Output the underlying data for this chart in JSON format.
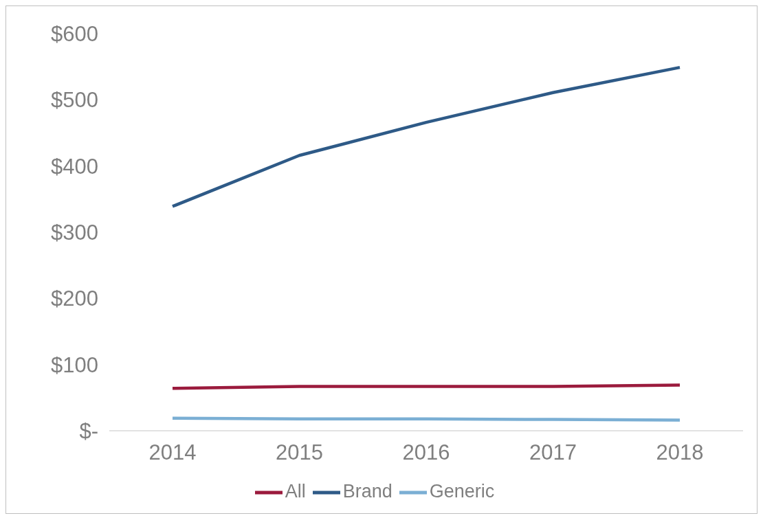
{
  "chart_data": {
    "type": "line",
    "categories": [
      "2014",
      "2015",
      "2016",
      "2017",
      "2018"
    ],
    "series": [
      {
        "name": "All",
        "color": "#9b1b3d",
        "values": [
          64,
          67,
          67,
          67,
          69
        ]
      },
      {
        "name": "Brand",
        "color": "#2e5a87",
        "values": [
          339,
          416,
          466,
          511,
          549
        ]
      },
      {
        "name": "Generic",
        "color": "#7bafd4",
        "values": [
          19,
          18,
          18,
          17,
          16
        ]
      }
    ],
    "ylim": [
      0,
      600
    ],
    "yticks": [
      {
        "value": 0,
        "label": "$-"
      },
      {
        "value": 100,
        "label": "$100"
      },
      {
        "value": 200,
        "label": "$200"
      },
      {
        "value": 300,
        "label": "$300"
      },
      {
        "value": 400,
        "label": "$400"
      },
      {
        "value": 500,
        "label": "$500"
      },
      {
        "value": 600,
        "label": "$600"
      }
    ],
    "grid": false,
    "legend": "bottom",
    "marker": "none",
    "line_style": "solid"
  }
}
